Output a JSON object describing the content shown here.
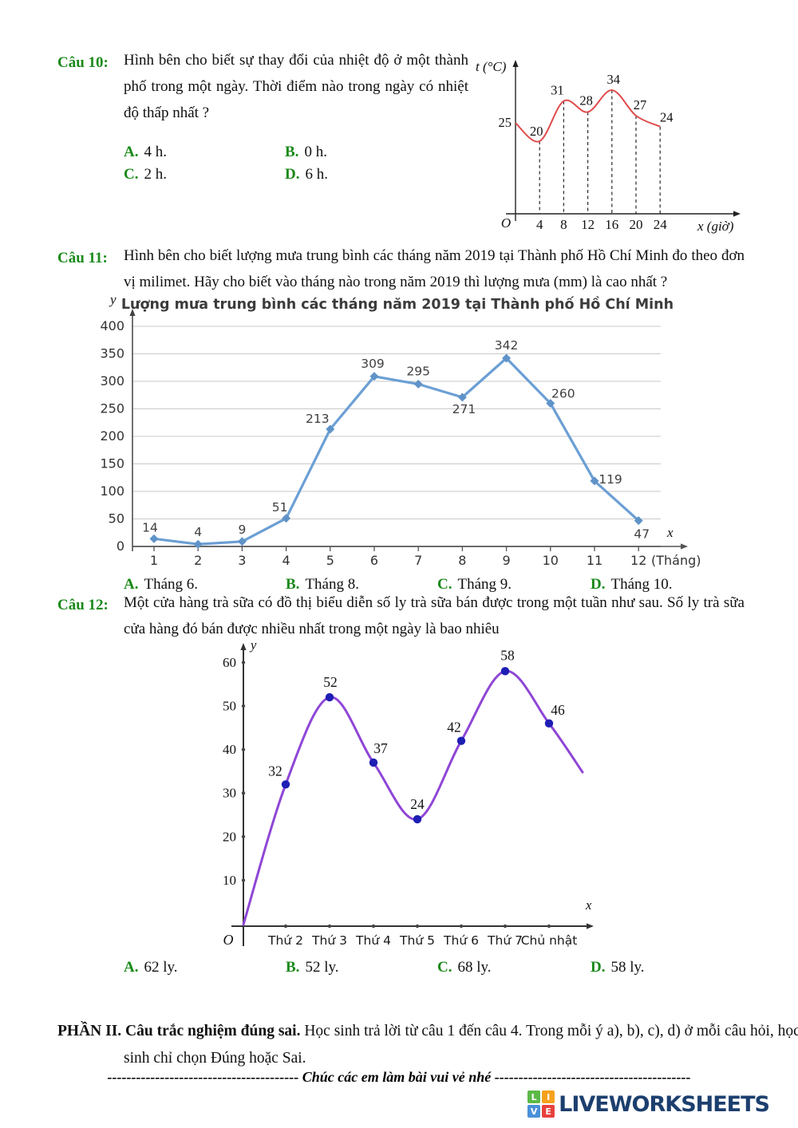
{
  "colors": {
    "accent_green": "#1a8a1a",
    "temp_line": "#e04b4b",
    "rain_line": "#6b9fd4",
    "rain_marker": "#5f93c8",
    "tea_curve": "#8f46d6",
    "tea_dot": "#1e1eb4",
    "grid": "#c9c9c9",
    "axis": "#333333",
    "logo_navy": "#1c3f6e"
  },
  "questions": {
    "q10": {
      "label": "Câu 10:",
      "text": "Hình bên cho biết sự thay đổi của nhiệt độ ở một thành phố trong một ngày. Thời điểm nào trong ngày có nhiệt độ thấp nhất ?",
      "options": [
        {
          "letter": "A.",
          "text": "4 h."
        },
        {
          "letter": "B.",
          "text": "0 h."
        },
        {
          "letter": "C.",
          "text": "2 h."
        },
        {
          "letter": "D.",
          "text": "6 h."
        }
      ]
    },
    "q11": {
      "label": "Câu 11:",
      "text": "Hình bên cho biết lượng mưa trung bình các tháng năm 2019 tại Thành phố Hồ Chí Minh đo theo đơn vị milimet. Hãy cho biết vào tháng nào trong năm 2019 thì lượng mưa (mm) là cao nhất ?",
      "options": [
        {
          "letter": "A.",
          "text": "Tháng 6."
        },
        {
          "letter": "B.",
          "text": "Tháng 8."
        },
        {
          "letter": "C.",
          "text": "Tháng 9."
        },
        {
          "letter": "D.",
          "text": "Tháng 10."
        }
      ]
    },
    "q12": {
      "label": "Câu 12:",
      "text": "Một cửa hàng trà sữa có đồ thị biểu diễn số ly trà sữa bán được trong một tuần như sau. Số ly trà sữa cửa hàng đó bán được nhiều nhất trong một ngày là bao nhiêu",
      "options": [
        {
          "letter": "A.",
          "text": "62 ly."
        },
        {
          "letter": "B.",
          "text": "52 ly."
        },
        {
          "letter": "C.",
          "text": "68 ly."
        },
        {
          "letter": "D.",
          "text": "58 ly."
        }
      ]
    }
  },
  "part2": {
    "bold": "PHẦN II. Câu trắc nghiệm đúng sai.",
    "text": " Học sinh trả lời từ câu 1 đến câu 4. Trong mỗi ý a), b), c), d) ở mỗi câu hỏi, học sinh chỉ chọn Đúng hoặc Sai."
  },
  "footer": {
    "dashes_left": "----------------------------------------",
    "message": " Chúc các em làm bài vui vẻ nhé ",
    "dashes_right": "-----------------------------------------"
  },
  "logo": {
    "squares": [
      {
        "letter": "L",
        "color": "#5cb947"
      },
      {
        "letter": "I",
        "color": "#f6a21d"
      },
      {
        "letter": "V",
        "color": "#4a90d9"
      },
      {
        "letter": "E",
        "color": "#e8413c"
      }
    ],
    "text": "LIVEWORKSHEETS"
  },
  "chart_data": [
    {
      "id": "temperature",
      "type": "line",
      "title": "",
      "ylabel": "t (°C)",
      "xlabel": "x (giờ)",
      "origin_label": "O",
      "x": [
        0,
        4,
        8,
        12,
        16,
        20,
        24
      ],
      "values": [
        25,
        20,
        31,
        28,
        34,
        27,
        24
      ],
      "xticks": [
        4,
        8,
        12,
        16,
        20,
        24
      ],
      "line_color": "#e04b4b",
      "grid": false,
      "dashed_guides": true
    },
    {
      "id": "rainfall",
      "type": "line",
      "title": "Lượng mưa trung bình các tháng năm 2019 tại Thành phố Hồ Chí Minh",
      "ylabel": "y",
      "xlabel": "x",
      "x_unit": "(Tháng)",
      "categories": [
        1,
        2,
        3,
        4,
        5,
        6,
        7,
        8,
        9,
        10,
        11,
        12
      ],
      "values": [
        14,
        4,
        9,
        51,
        213,
        309,
        295,
        271,
        342,
        260,
        119,
        47
      ],
      "yticks": [
        0,
        50,
        100,
        150,
        200,
        250,
        300,
        350,
        400
      ],
      "ylim": [
        0,
        400
      ],
      "line_color": "#6b9fd4",
      "grid": true,
      "legend": "none"
    },
    {
      "id": "tea",
      "type": "line",
      "title": "",
      "ylabel": "y",
      "xlabel": "x",
      "origin_label": "O",
      "categories": [
        "Thứ 2",
        "Thứ 3",
        "Thứ 4",
        "Thứ 5",
        "Thứ 6",
        "Thứ 7",
        "Chủ nhật"
      ],
      "values": [
        32,
        52,
        37,
        24,
        42,
        58,
        46
      ],
      "yticks": [
        10,
        20,
        30,
        40,
        50,
        60
      ],
      "ylim": [
        0,
        63
      ],
      "curve_color": "#8f46d6",
      "dot_color": "#1e1eb4",
      "grid": false
    }
  ]
}
